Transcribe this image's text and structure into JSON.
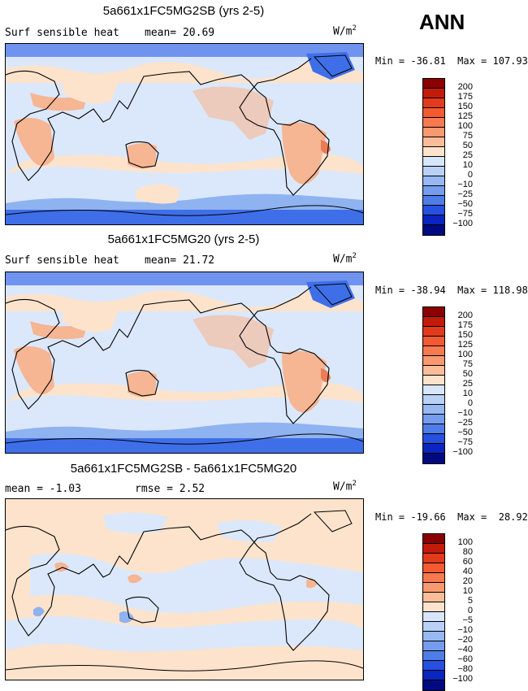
{
  "season": "ANN",
  "colors": {
    "ocean_light": "#dbe8fb",
    "cold_deep": "#3f6fe8",
    "cold_mid": "#8fb2f0",
    "warm_light": "#fde3cc",
    "warm_mid": "#f6b593",
    "warm_strong": "#ea7d55"
  },
  "panels": [
    {
      "title": "5a661x1FC5MG2SB (yrs 2-5)",
      "variable": "Surf sensible heat",
      "stat_text": "mean=  20.69",
      "units": "W/m",
      "units_sup": "2",
      "minmax": "Min = -36.81  Max = 107.93",
      "colorbar": {
        "labels": [
          "200",
          "175",
          "150",
          "125",
          "100",
          "75",
          "50",
          "25",
          "10",
          "0",
          "−10",
          "−25",
          "−50",
          "−75",
          "−100"
        ],
        "colors": [
          "#8b0000",
          "#c41a0a",
          "#e23a1c",
          "#f35a32",
          "#f7794f",
          "#f9996f",
          "#fbbd99",
          "#fde3cc",
          "#d8e6fb",
          "#b9d0f7",
          "#97b8f2",
          "#759ced",
          "#4f7de8",
          "#2650e0",
          "#0a25c0",
          "#000a80"
        ]
      }
    },
    {
      "title": "5a661x1FC5MG20 (yrs 2-5)",
      "variable": "Surf sensible heat",
      "stat_text": "mean=  21.72",
      "units": "W/m",
      "units_sup": "2",
      "minmax": "Min = -38.94  Max = 118.98",
      "colorbar": {
        "labels": [
          "200",
          "175",
          "150",
          "125",
          "100",
          "75",
          "50",
          "25",
          "10",
          "0",
          "−10",
          "−25",
          "−50",
          "−75",
          "−100"
        ],
        "colors": [
          "#8b0000",
          "#c41a0a",
          "#e23a1c",
          "#f35a32",
          "#f7794f",
          "#f9996f",
          "#fbbd99",
          "#fde3cc",
          "#d8e6fb",
          "#b9d0f7",
          "#97b8f2",
          "#759ced",
          "#4f7de8",
          "#2650e0",
          "#0a25c0",
          "#000a80"
        ]
      }
    },
    {
      "title": "5a661x1FC5MG2SB - 5a661x1FC5MG20",
      "variable": "mean =  -1.03",
      "stat_text": "rmse =   2.52",
      "units": "W/m",
      "units_sup": "2",
      "minmax": "Min = -19.66  Max =  28.92",
      "colorbar": {
        "labels": [
          "100",
          "80",
          "60",
          "40",
          "20",
          "10",
          "5",
          "0",
          "−5",
          "−10",
          "−20",
          "−40",
          "−60",
          "−80",
          "−100"
        ],
        "colors": [
          "#8b0000",
          "#c41a0a",
          "#e23a1c",
          "#f35a32",
          "#f7794f",
          "#f9996f",
          "#fbbd99",
          "#fde3cc",
          "#d8e6fb",
          "#b9d0f7",
          "#97b8f2",
          "#759ced",
          "#4f7de8",
          "#2650e0",
          "#0a25c0",
          "#000a80"
        ]
      }
    }
  ]
}
